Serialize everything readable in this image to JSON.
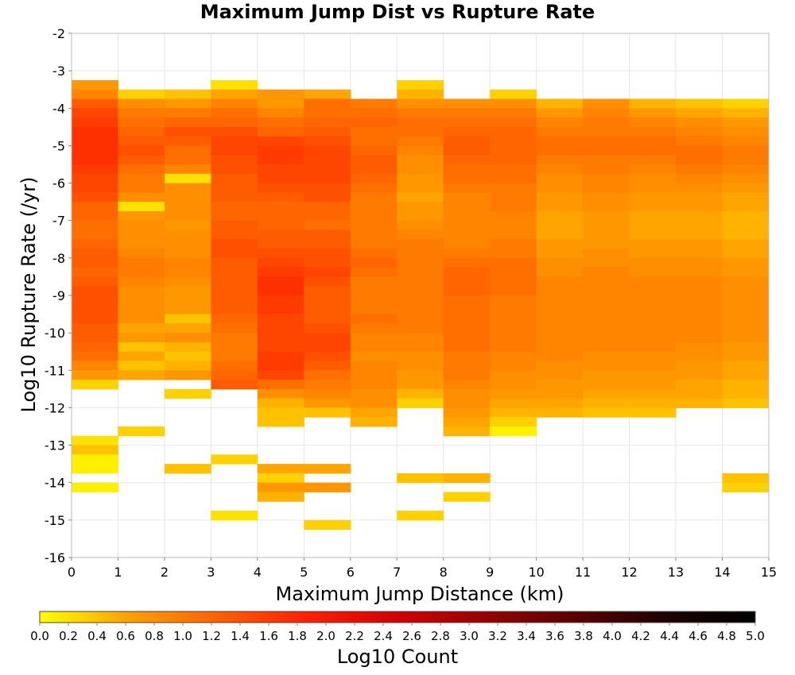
{
  "chart_data": {
    "type": "heatmap",
    "title": "Maximum Jump Dist vs Rupture Rate",
    "xlabel": "Maximum Jump Distance (km)",
    "ylabel": "Log10 Rupture Rate (/yr)",
    "xlim": [
      0,
      15
    ],
    "ylim": [
      -16,
      -2
    ],
    "x_ticks": [
      "0",
      "1",
      "2",
      "3",
      "4",
      "5",
      "6",
      "7",
      "8",
      "9",
      "10",
      "11",
      "12",
      "13",
      "14",
      "15"
    ],
    "y_ticks": [
      "-2",
      "-3",
      "-4",
      "-5",
      "-6",
      "-7",
      "-8",
      "-9",
      "-10",
      "-11",
      "-12",
      "-13",
      "-14",
      "-15",
      "-16"
    ],
    "x_bin_width": 1,
    "y_bin_height": 0.25,
    "grid": true,
    "colorbar": {
      "label": "Log10 Count",
      "range": [
        0,
        5
      ],
      "ticks": [
        "0.0",
        "0.2",
        "0.4",
        "0.6",
        "0.8",
        "1.0",
        "1.2",
        "1.4",
        "1.6",
        "1.8",
        "2.0",
        "2.2",
        "2.4",
        "2.6",
        "2.8",
        "3.0",
        "3.2",
        "3.4",
        "3.6",
        "3.8",
        "4.0",
        "4.2",
        "4.4",
        "4.6",
        "4.8",
        "5.0"
      ],
      "colors": [
        "#ffff00",
        "#ffa000",
        "#ff6000",
        "#ff1e00",
        "#d20000",
        "#960000",
        "#5a0000",
        "#1e0000",
        "#000000"
      ],
      "placement": "bottom"
    },
    "columns": [
      {
        "x": 0,
        "ytop": -3.25,
        "values": [
          0.7,
          0.9,
          1.3,
          1.5,
          1.6,
          1.7,
          1.7,
          1.7,
          1.7,
          1.6,
          1.5,
          1.5,
          1.4,
          1.2,
          1.2,
          1.1,
          1.1,
          1.2,
          1.3,
          1.3,
          1.2,
          1.3,
          1.4,
          1.4,
          1.4,
          1.4,
          1.3,
          1.3,
          1.2,
          1.1,
          0.9,
          0.7,
          0.3,
          null,
          null,
          null,
          null,
          null,
          0.2,
          0.4,
          0.1,
          0.1,
          null,
          0.1
        ]
      },
      {
        "x": 1,
        "ytop": -3.5,
        "values": [
          0.3,
          0.8,
          1.0,
          1.1,
          1.2,
          1.3,
          1.4,
          1.3,
          1.1,
          1.0,
          1.0,
          0.8,
          0.2,
          0.7,
          0.8,
          0.8,
          0.8,
          0.9,
          1.0,
          1.0,
          0.9,
          0.8,
          0.8,
          0.8,
          0.8,
          0.6,
          0.7,
          0.4,
          0.6,
          0.4,
          0.6,
          null,
          null,
          null,
          null,
          null,
          0.3
        ]
      },
      {
        "x": 2,
        "ytop": -3.5,
        "values": [
          0.4,
          0.7,
          1.0,
          1.2,
          1.4,
          1.3,
          1.1,
          1.1,
          0.9,
          0.2,
          0.8,
          0.8,
          0.8,
          0.8,
          0.7,
          0.8,
          0.8,
          0.8,
          0.9,
          0.9,
          0.8,
          0.7,
          0.7,
          0.7,
          0.4,
          0.6,
          0.8,
          0.5,
          0.4,
          0.5,
          0.7,
          null,
          0.3,
          null,
          null,
          null,
          null,
          null,
          null,
          null,
          0.4
        ]
      },
      {
        "x": 3,
        "ytop": -3.25,
        "values": [
          0.2,
          0.6,
          0.9,
          1.1,
          1.2,
          1.4,
          1.5,
          1.5,
          1.4,
          1.4,
          1.3,
          1.3,
          1.3,
          1.2,
          1.2,
          1.3,
          1.3,
          1.4,
          1.4,
          1.3,
          1.3,
          1.3,
          1.3,
          1.3,
          1.3,
          1.2,
          1.1,
          1.0,
          1.0,
          1.0,
          1.1,
          1.2,
          1.3,
          null,
          null,
          null,
          null,
          null,
          null,
          null,
          0.3,
          null,
          null,
          null,
          null,
          null,
          0.2
        ]
      },
      {
        "x": 4,
        "ytop": -3.5,
        "values": [
          0.7,
          0.7,
          0.9,
          1.1,
          1.2,
          1.5,
          1.6,
          1.6,
          1.5,
          1.5,
          1.4,
          1.3,
          1.2,
          1.2,
          1.2,
          1.3,
          1.3,
          1.4,
          1.5,
          1.6,
          1.7,
          1.7,
          1.6,
          1.6,
          1.5,
          1.5,
          1.5,
          1.5,
          1.6,
          1.6,
          1.5,
          1.1,
          0.8,
          0.5,
          0.4,
          0.4,
          null,
          null,
          null,
          null,
          0.6,
          0.3,
          0.7,
          0.5
        ]
      },
      {
        "x": 5,
        "ytop": -3.5,
        "values": [
          0.6,
          1.1,
          1.1,
          1.2,
          1.3,
          1.4,
          1.5,
          1.5,
          1.5,
          1.5,
          1.4,
          1.4,
          1.2,
          1.2,
          1.1,
          1.3,
          1.3,
          1.4,
          1.4,
          1.5,
          1.4,
          1.3,
          1.3,
          1.3,
          1.3,
          1.4,
          1.5,
          1.5,
          1.4,
          1.3,
          1.1,
          1.0,
          0.9,
          0.7,
          0.4,
          null,
          null,
          null,
          null,
          null,
          0.6,
          null,
          0.7,
          null,
          null,
          null,
          0.3
        ]
      },
      {
        "x": 6,
        "ytop": -3.75,
        "values": [
          1.0,
          1.1,
          1.2,
          1.1,
          1.1,
          1.2,
          1.3,
          1.3,
          1.2,
          1.1,
          1.0,
          1.0,
          1.0,
          1.0,
          1.0,
          1.0,
          1.1,
          1.2,
          1.1,
          1.0,
          1.0,
          1.0,
          1.0,
          1.1,
          1.0,
          0.9,
          0.9,
          0.8,
          0.9,
          0.9,
          0.9,
          0.8,
          0.8,
          0.6,
          0.5
        ]
      },
      {
        "x": 7,
        "ytop": -3.25,
        "values": [
          0.3,
          0.5,
          0.8,
          1.0,
          1.1,
          1.1,
          1.0,
          0.9,
          0.8,
          0.8,
          0.7,
          0.7,
          0.6,
          0.7,
          0.7,
          0.8,
          0.9,
          1.0,
          1.0,
          1.0,
          1.0,
          1.0,
          1.0,
          1.0,
          1.0,
          1.0,
          1.0,
          0.9,
          0.9,
          0.8,
          0.8,
          0.7,
          0.7,
          0.5,
          0.3,
          null,
          null,
          null,
          null,
          null,
          null,
          null,
          0.4,
          null,
          null,
          null,
          0.3
        ]
      },
      {
        "x": 8,
        "ytop": -3.75,
        "values": [
          0.8,
          1.0,
          1.1,
          1.2,
          1.3,
          1.3,
          1.2,
          1.1,
          1.1,
          1.0,
          0.9,
          0.9,
          0.9,
          0.9,
          0.9,
          0.9,
          1.0,
          1.1,
          1.2,
          1.2,
          1.2,
          1.1,
          1.1,
          1.1,
          1.1,
          1.1,
          1.1,
          1.0,
          1.0,
          1.0,
          0.9,
          0.8,
          0.8,
          0.7,
          0.6,
          0.5,
          null,
          null,
          null,
          null,
          0.5,
          null,
          0.3
        ]
      },
      {
        "x": 9,
        "ytop": -3.5,
        "values": [
          0.3,
          0.8,
          1.0,
          1.1,
          1.2,
          1.2,
          1.2,
          1.2,
          1.1,
          1.1,
          1.0,
          1.0,
          1.0,
          0.9,
          0.9,
          0.9,
          1.0,
          1.0,
          1.1,
          1.1,
          1.1,
          1.1,
          1.0,
          1.0,
          1.0,
          1.0,
          1.0,
          1.0,
          0.9,
          0.9,
          0.8,
          0.8,
          0.7,
          0.6,
          0.5,
          0.3,
          0.1
        ]
      },
      {
        "x": 10,
        "ytop": -3.75,
        "values": [
          0.5,
          0.7,
          0.9,
          1.0,
          1.1,
          1.1,
          1.0,
          0.9,
          0.8,
          0.8,
          0.7,
          0.7,
          0.6,
          0.6,
          0.6,
          0.7,
          0.7,
          0.8,
          0.8,
          0.9,
          0.9,
          0.9,
          0.9,
          0.9,
          0.9,
          0.9,
          0.9,
          0.9,
          0.8,
          0.8,
          0.7,
          0.7,
          0.6,
          0.5
        ]
      },
      {
        "x": 11,
        "ytop": -3.75,
        "values": [
          0.8,
          0.9,
          1.0,
          1.0,
          1.1,
          1.1,
          1.0,
          1.0,
          0.9,
          0.9,
          0.8,
          0.8,
          0.7,
          0.7,
          0.7,
          0.7,
          0.8,
          0.8,
          0.9,
          0.9,
          0.9,
          0.9,
          0.9,
          0.9,
          0.9,
          0.9,
          0.9,
          0.8,
          0.8,
          0.7,
          0.7,
          0.6,
          0.5,
          0.4
        ]
      },
      {
        "x": 12,
        "ytop": -3.75,
        "values": [
          0.5,
          0.7,
          0.9,
          1.0,
          1.1,
          1.1,
          1.0,
          0.9,
          0.8,
          0.8,
          0.7,
          0.7,
          0.6,
          0.6,
          0.6,
          0.7,
          0.7,
          0.8,
          0.8,
          0.9,
          0.9,
          0.9,
          0.9,
          0.9,
          0.9,
          0.9,
          0.9,
          0.8,
          0.8,
          0.7,
          0.7,
          0.6,
          0.5,
          0.4
        ]
      },
      {
        "x": 13,
        "ytop": -3.75,
        "values": [
          0.4,
          0.6,
          0.8,
          0.9,
          1.0,
          1.1,
          1.1,
          1.0,
          0.9,
          0.8,
          0.7,
          0.7,
          0.6,
          0.6,
          0.6,
          0.7,
          0.7,
          0.8,
          0.8,
          0.9,
          0.9,
          0.9,
          0.9,
          0.9,
          0.9,
          0.9,
          0.8,
          0.8,
          0.7,
          0.7,
          0.6,
          0.6,
          0.5
        ]
      },
      {
        "x": 14,
        "ytop": -3.75,
        "values": [
          0.3,
          0.5,
          0.7,
          0.8,
          0.9,
          1.0,
          1.0,
          0.9,
          0.8,
          0.7,
          0.6,
          0.6,
          0.5,
          0.5,
          0.5,
          0.6,
          0.6,
          0.7,
          0.7,
          0.8,
          0.8,
          0.8,
          0.8,
          0.8,
          0.8,
          0.8,
          0.7,
          0.7,
          0.6,
          0.6,
          0.5,
          0.5,
          0.4,
          null,
          null,
          null,
          null,
          null,
          null,
          null,
          0.4,
          0.3
        ]
      }
    ]
  }
}
